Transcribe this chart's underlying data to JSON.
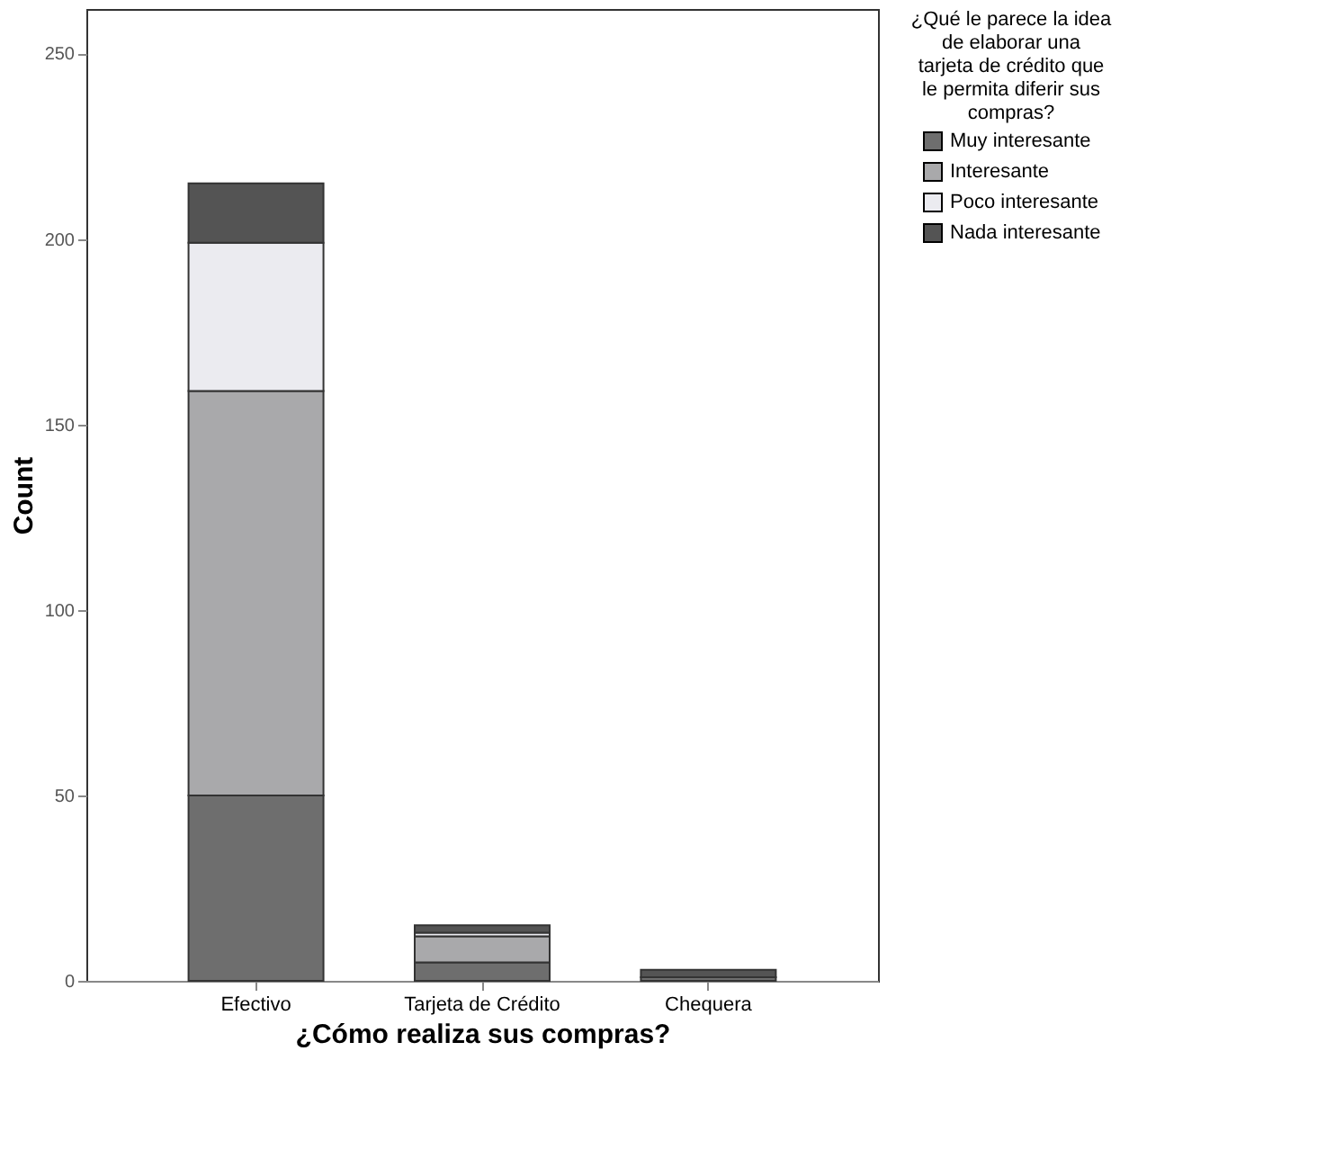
{
  "chart_data": {
    "type": "bar",
    "stacked": true,
    "xlabel": "¿Cómo realiza sus compras?",
    "ylabel": "Count",
    "legend_title": "¿Qué le parece la idea de elaborar una tarjeta de crédito que le permita diferir sus compras?",
    "categories": [
      "Efectivo",
      "Tarjeta de Crédito",
      "Chequera"
    ],
    "series": [
      {
        "name": "Muy interesante",
        "color": "#6e6e6e",
        "values": [
          50,
          5,
          1
        ]
      },
      {
        "name": "Interesante",
        "color": "#a9a9ab",
        "values": [
          109,
          7,
          0
        ]
      },
      {
        "name": "Poco interesante",
        "color": "#ebebf0",
        "values": [
          40,
          1,
          0
        ]
      },
      {
        "name": "Nada interesante",
        "color": "#545454",
        "values": [
          16,
          2,
          2
        ]
      }
    ],
    "ylim": [
      0,
      262
    ],
    "yticks": [
      0,
      50,
      100,
      150,
      200,
      250
    ],
    "grid": false,
    "legend": "top right"
  }
}
